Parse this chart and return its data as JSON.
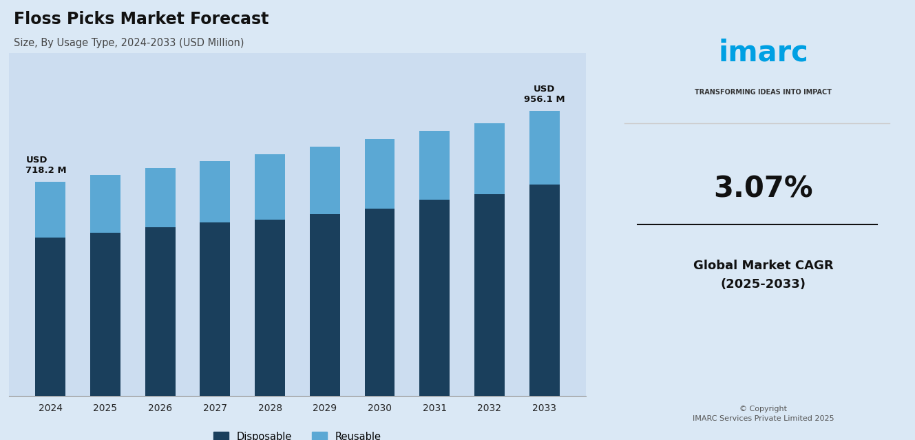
{
  "title": "Floss Picks Market Forecast",
  "subtitle": "Size, By Usage Type, 2024-2033 (USD Million)",
  "years": [
    2024,
    2025,
    2026,
    2027,
    2028,
    2029,
    2030,
    2031,
    2032,
    2033
  ],
  "total_2024": 718.2,
  "total_2033": 956.1,
  "label_2024": "USD\n718.2 M",
  "label_2033": "USD\n956.1 M",
  "reusable_pcts": [
    0.26,
    0.26,
    0.26,
    0.26,
    0.27,
    0.27,
    0.27,
    0.26,
    0.26,
    0.26
  ],
  "cagr": 1.0307,
  "disposable_color": "#1a3f5c",
  "reusable_color": "#5ba8d4",
  "background_color": "#dae8f5",
  "chart_bg": "#ccddf0",
  "legend_disposable": "Disposable",
  "legend_reusable": "Reusable",
  "cagr_text": "3.07%",
  "cagr_label": "Global Market CAGR\n(2025-2033)",
  "copyright": "© Copyright\nIMARC Services Private Limited 2025",
  "imarc_color": "#00a0e3",
  "imarc_tagline": "TRANSFORMING IDEAS INTO IMPACT"
}
